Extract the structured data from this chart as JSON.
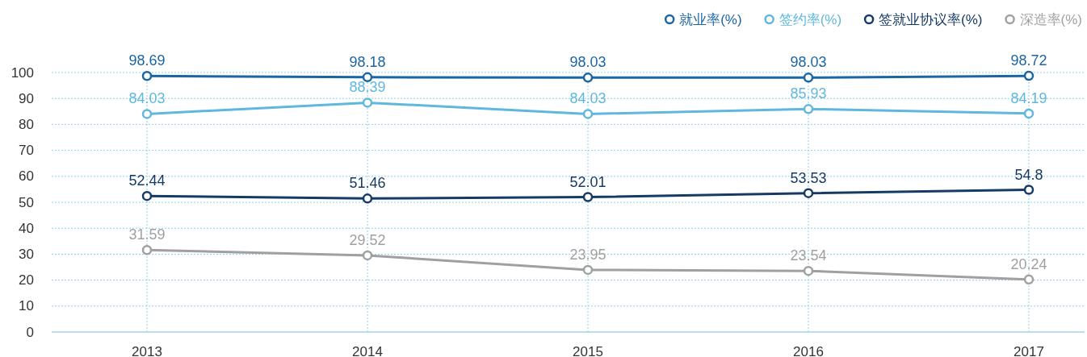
{
  "chart_data": {
    "type": "line",
    "categories": [
      "2013",
      "2014",
      "2015",
      "2016",
      "2017"
    ],
    "series": [
      {
        "name": "就业率(%)",
        "color": "#1b65a3",
        "values": [
          98.69,
          98.18,
          98.03,
          98.03,
          98.72
        ]
      },
      {
        "name": "签约率(%)",
        "color": "#5fb7de",
        "values": [
          84.03,
          88.39,
          84.03,
          85.93,
          84.19
        ]
      },
      {
        "name": "签就业协议率(%)",
        "color": "#163a64",
        "values": [
          52.44,
          51.46,
          52.01,
          53.53,
          54.8
        ]
      },
      {
        "name": "深造率(%)",
        "color": "#a0a0a0",
        "values": [
          31.59,
          29.52,
          23.95,
          23.54,
          20.24
        ]
      }
    ],
    "ylim": [
      0,
      100
    ],
    "yticks": [
      0,
      10,
      20,
      30,
      40,
      50,
      60,
      70,
      80,
      90,
      100
    ],
    "grid": true,
    "legend": "top right",
    "marker": "circle",
    "line_style": "solid",
    "data_labels": true
  }
}
